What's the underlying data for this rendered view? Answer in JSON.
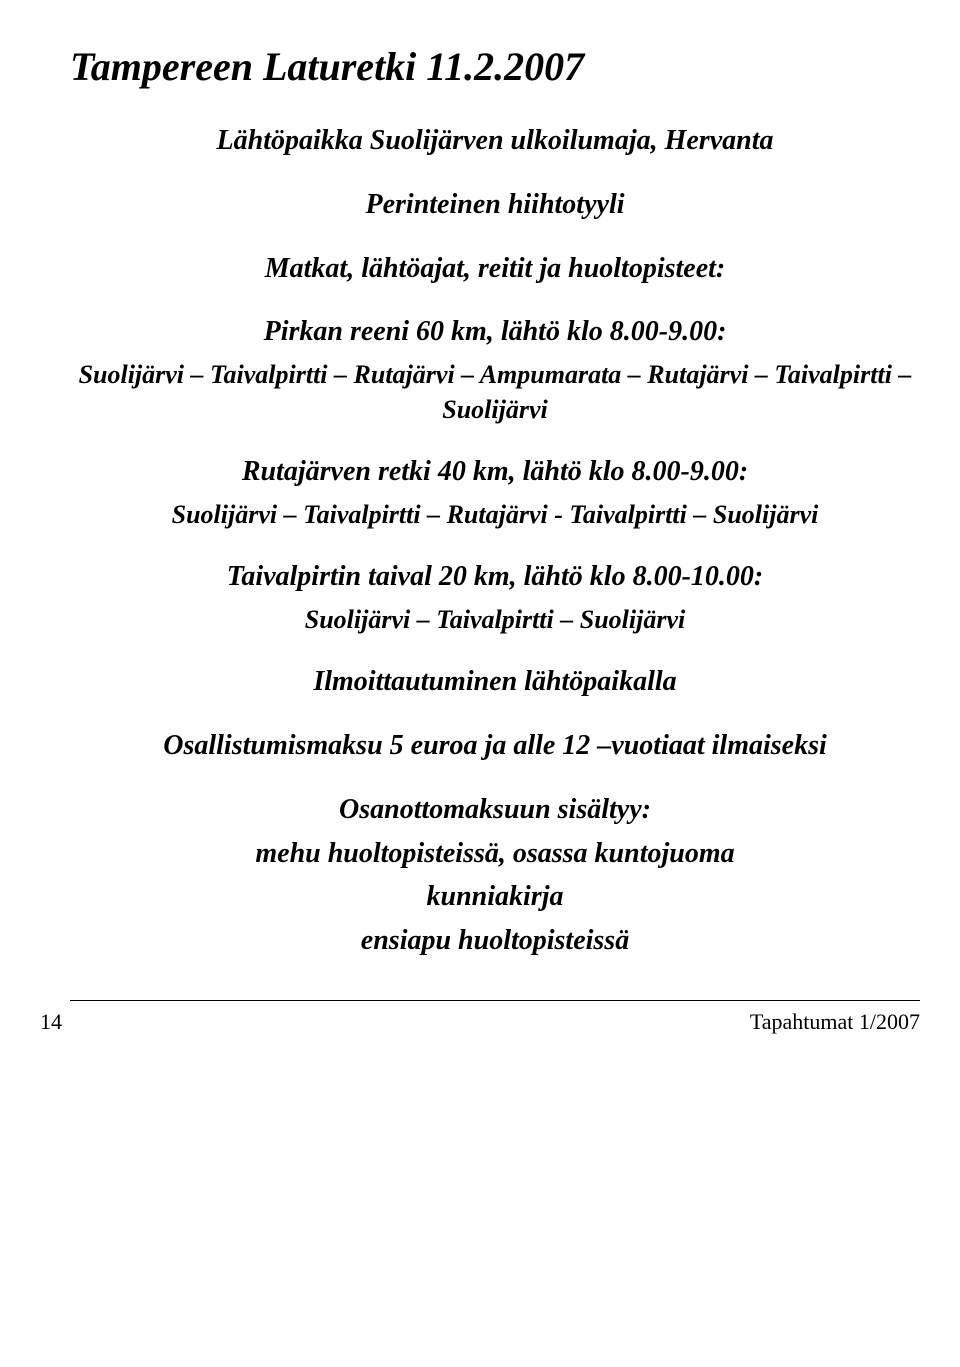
{
  "title": "Tampereen Laturetki 11.2.2007",
  "start_location": "Lähtöpaikka Suolijärven ulkoilumaja, Hervanta",
  "style_line": "Perinteinen hiihtotyyli",
  "routes_heading": "Matkat, lähtöajat, reitit ja huoltopisteet:",
  "route1": {
    "heading": "Pirkan reeni 60 km, lähtö klo 8.00-9.00:",
    "path": "Suolijärvi – Taivalpirtti – Rutajärvi – Ampumarata – Rutajärvi – Taivalpirtti – Suolijärvi"
  },
  "route2": {
    "heading": "Rutajärven retki 40 km, lähtö klo 8.00-9.00:",
    "path": "Suolijärvi – Taivalpirtti – Rutajärvi - Taivalpirtti – Suolijärvi"
  },
  "route3": {
    "heading": "Taivalpirtin taival 20 km, lähtö klo 8.00-10.00:",
    "path": "Suolijärvi – Taivalpirtti – Suolijärvi"
  },
  "registration": "Ilmoittautuminen lähtöpaikalla",
  "fee": "Osallistumismaksu 5 euroa ja alle 12 –vuotiaat ilmaiseksi",
  "includes_heading": "Osanottomaksuun sisältyy:",
  "includes_line1": "mehu huoltopisteissä, osassa kuntojuoma",
  "includes_line2": "kunniakirja",
  "includes_line3": "ensiapu huoltopisteissä",
  "footer": {
    "page": "14",
    "right": "Tapahtumat 1/2007"
  }
}
